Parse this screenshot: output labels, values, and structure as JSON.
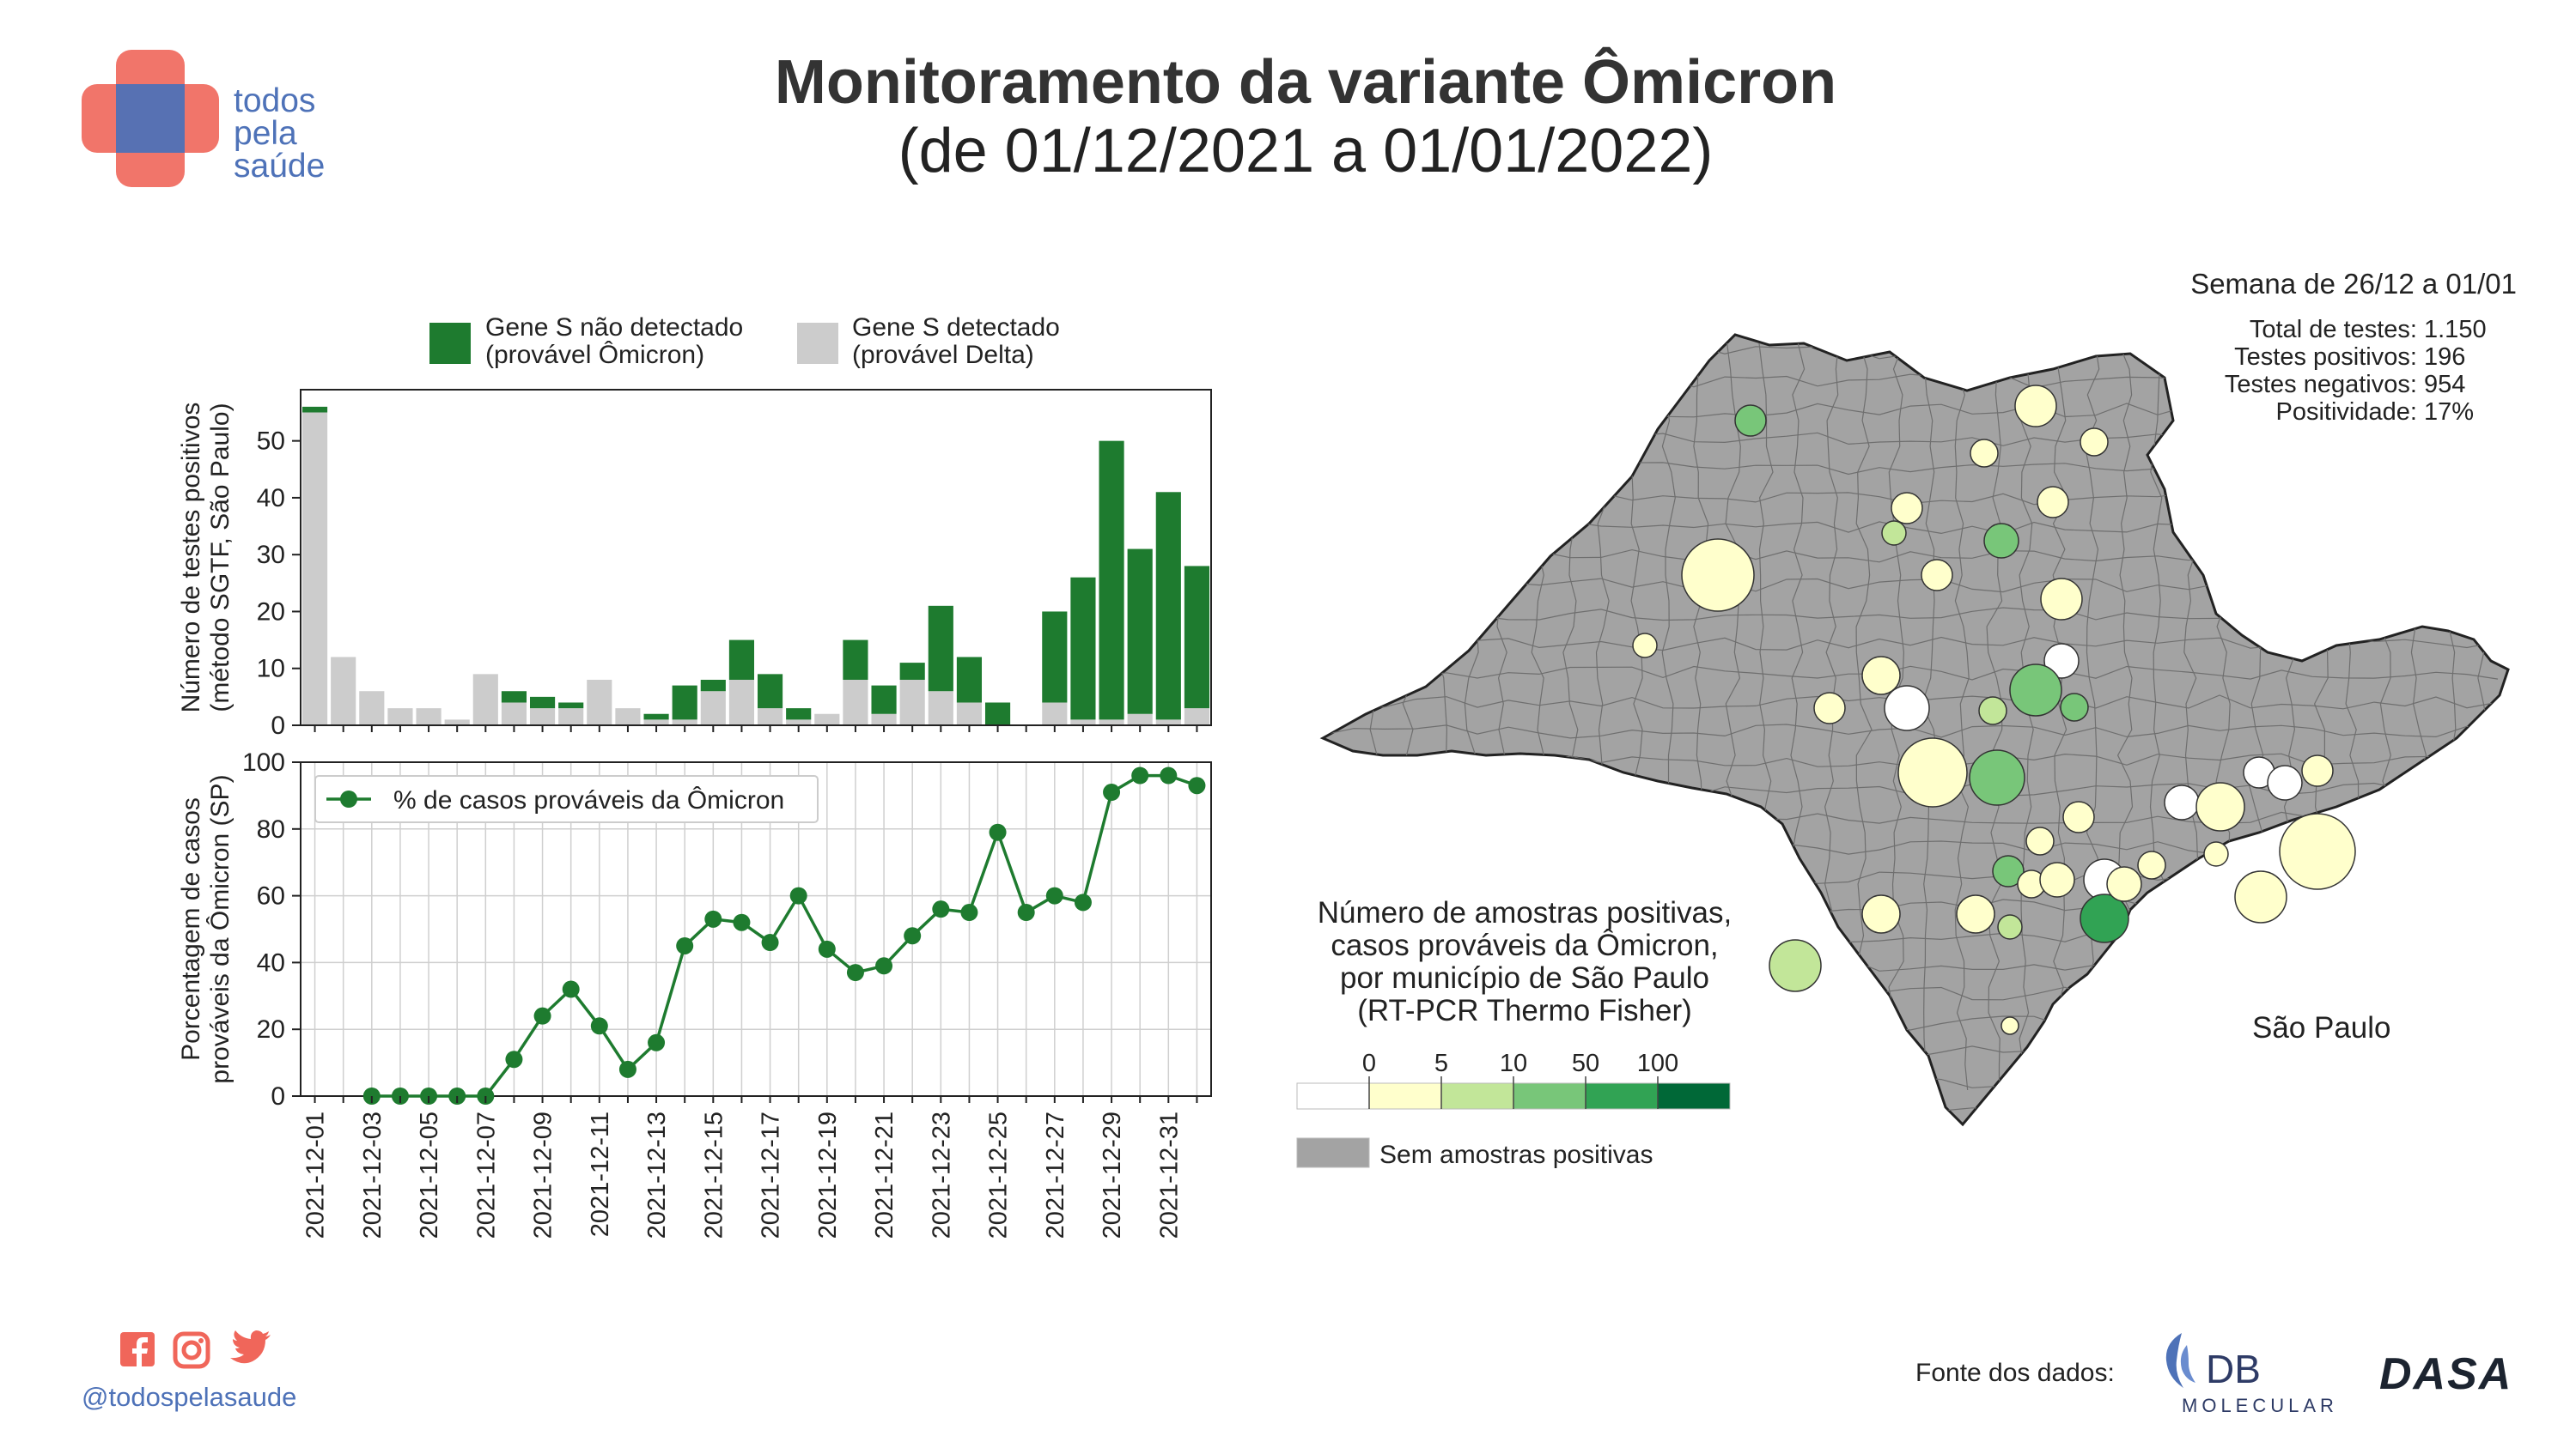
{
  "header": {
    "title": "Monitoramento da variante Ômicron",
    "subtitle": "(de 01/12/2021 a 01/01/2022)"
  },
  "brand": {
    "line1": "todos",
    "line2": "pela",
    "line3": "saúde",
    "handle": "@todospelasaude",
    "social_icons": [
      "facebook-icon",
      "instagram-icon",
      "twitter-icon"
    ]
  },
  "colors": {
    "omicron": "#1e7b2f",
    "delta": "#cccccc",
    "map_gray": "#a3a3a3",
    "brand_red": "#f0665a",
    "brand_blue": "#4e72b8"
  },
  "chart_data": [
    {
      "type": "bar",
      "stacked": true,
      "legend": [
        {
          "line1": "Gene S não detectado",
          "line2": "(provável Ômicron)"
        },
        {
          "line1": "Gene S detectado",
          "line2": "(provável Delta)"
        }
      ],
      "ylabel_line1": "Número de testes positivos",
      "ylabel_line2": "(método SGTF, São Paulo)",
      "ylim": [
        0,
        59
      ],
      "yticks": [
        0,
        10,
        20,
        30,
        40,
        50
      ],
      "categories": [
        "2021-12-01",
        "2021-12-02",
        "2021-12-03",
        "2021-12-04",
        "2021-12-05",
        "2021-12-06",
        "2021-12-07",
        "2021-12-08",
        "2021-12-09",
        "2021-12-10",
        "2021-12-11",
        "2021-12-12",
        "2021-12-13",
        "2021-12-14",
        "2021-12-15",
        "2021-12-16",
        "2021-12-17",
        "2021-12-18",
        "2021-12-19",
        "2021-12-20",
        "2021-12-21",
        "2021-12-22",
        "2021-12-23",
        "2021-12-24",
        "2021-12-25",
        "2021-12-26",
        "2021-12-27",
        "2021-12-28",
        "2021-12-29",
        "2021-12-30",
        "2021-12-31",
        "2022-01-01"
      ],
      "series": [
        {
          "name": "Gene S detectado (provável Delta)",
          "values": [
            55,
            12,
            6,
            3,
            3,
            1,
            9,
            4,
            3,
            3,
            8,
            3,
            1,
            1,
            6,
            8,
            3,
            1,
            2,
            8,
            2,
            8,
            6,
            4,
            0,
            0,
            4,
            1,
            1,
            2,
            1,
            3
          ]
        },
        {
          "name": "Gene S não detectado (provável Ômicron)",
          "values": [
            1,
            0,
            0,
            0,
            0,
            0,
            0,
            2,
            2,
            1,
            0,
            0,
            1,
            6,
            2,
            7,
            6,
            2,
            0,
            7,
            5,
            3,
            15,
            8,
            4,
            0,
            16,
            25,
            49,
            29,
            40,
            25
          ]
        }
      ],
      "grid": false
    },
    {
      "type": "line",
      "legend": [
        "% de casos prováveis da Ômicron"
      ],
      "ylabel_line1": "Porcentagem de casos",
      "ylabel_line2": "prováveis da Ômicron (SP)",
      "ylim": [
        0,
        100
      ],
      "yticks": [
        0,
        20,
        40,
        60,
        80,
        100
      ],
      "xtick_labels": [
        "2021-12-01",
        "2021-12-03",
        "2021-12-05",
        "2021-12-07",
        "2021-12-09",
        "2021-12-11",
        "2021-12-13",
        "2021-12-15",
        "2021-12-17",
        "2021-12-19",
        "2021-12-21",
        "2021-12-23",
        "2021-12-25",
        "2021-12-27",
        "2021-12-29",
        "2021-12-31"
      ],
      "points": [
        {
          "x": "2021-12-03",
          "y": 0
        },
        {
          "x": "2021-12-04",
          "y": 0
        },
        {
          "x": "2021-12-05",
          "y": 0
        },
        {
          "x": "2021-12-06",
          "y": 0
        },
        {
          "x": "2021-12-07",
          "y": 0
        },
        {
          "x": "2021-12-08",
          "y": 11
        },
        {
          "x": "2021-12-09",
          "y": 24
        },
        {
          "x": "2021-12-10",
          "y": 32
        },
        {
          "x": "2021-12-11",
          "y": 21
        },
        {
          "x": "2021-12-12",
          "y": 8
        },
        {
          "x": "2021-12-13",
          "y": 16
        },
        {
          "x": "2021-12-14",
          "y": 45
        },
        {
          "x": "2021-12-15",
          "y": 53
        },
        {
          "x": "2021-12-16",
          "y": 52
        },
        {
          "x": "2021-12-17",
          "y": 46
        },
        {
          "x": "2021-12-18",
          "y": 60
        },
        {
          "x": "2021-12-19",
          "y": 44
        },
        {
          "x": "2021-12-20",
          "y": 37
        },
        {
          "x": "2021-12-21",
          "y": 39
        },
        {
          "x": "2021-12-22",
          "y": 48
        },
        {
          "x": "2021-12-23",
          "y": 56
        },
        {
          "x": "2021-12-24",
          "y": 55
        },
        {
          "x": "2021-12-25",
          "y": 79
        },
        {
          "x": "2021-12-26",
          "y": 55
        },
        {
          "x": "2021-12-27",
          "y": 60
        },
        {
          "x": "2021-12-28",
          "y": 58
        },
        {
          "x": "2021-12-29",
          "y": 91
        },
        {
          "x": "2021-12-30",
          "y": 96
        },
        {
          "x": "2021-12-31",
          "y": 96
        },
        {
          "x": "2022-01-01",
          "y": 93
        }
      ],
      "grid": true
    }
  ],
  "map": {
    "week_label": "Semana de 26/12 a 01/01",
    "stats": [
      {
        "label": "Total de testes:",
        "value": "1.150"
      },
      {
        "label": "Testes positivos:",
        "value": "196"
      },
      {
        "label": "Testes negativos:",
        "value": "954"
      },
      {
        "label": "Positividade:",
        "value": "17%"
      }
    ],
    "region_label": "São Paulo",
    "legend_title_lines": [
      "Número de amostras positivas,",
      "casos prováveis da Ômicron,",
      "por município de São Paulo",
      "(RT-PCR Thermo Fisher)"
    ],
    "scale_ticks": [
      "0",
      "5",
      "10",
      "50",
      "100"
    ],
    "scale_colors": [
      "#ffffff",
      "#ffffcc",
      "#c2e699",
      "#78c679",
      "#31a354",
      "#006837"
    ],
    "no_sample_label": "Sem amostras positivas"
  },
  "footer": {
    "source_label": "Fonte dos dados:",
    "logo1_main": "DB",
    "logo1_sub": "MOLECULAR",
    "logo2": "DASA"
  }
}
